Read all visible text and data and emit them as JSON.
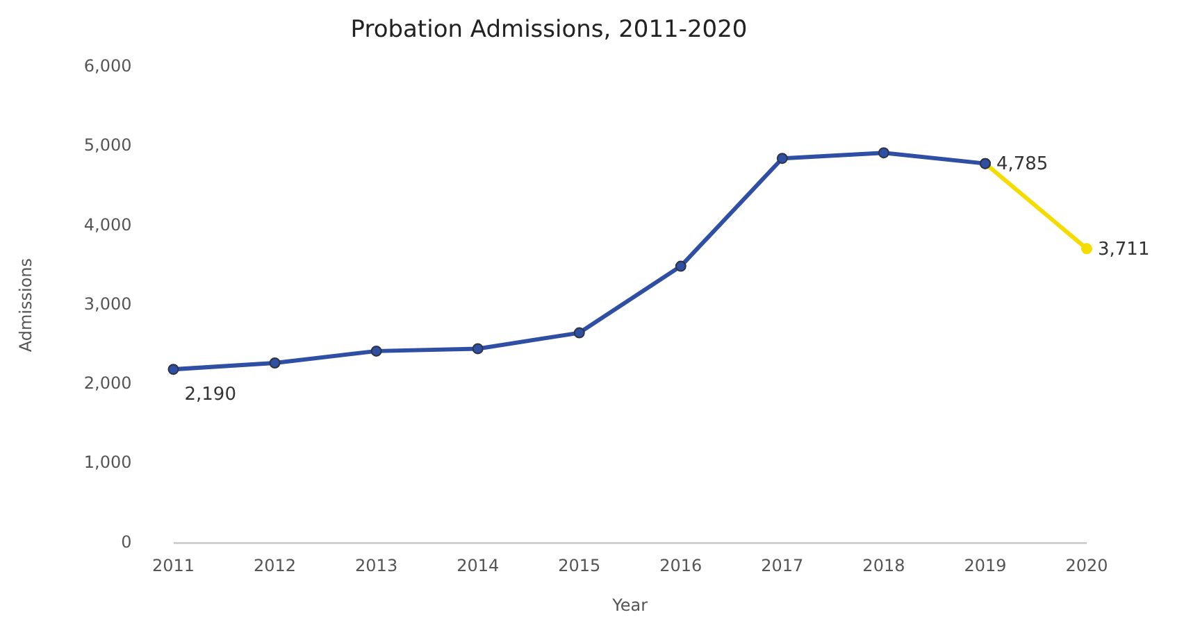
{
  "chart_data": {
    "type": "line",
    "title": "Probation Admissions, 2011-2020",
    "xlabel": "Year",
    "ylabel": "Admissions",
    "categories": [
      "2011",
      "2012",
      "2013",
      "2014",
      "2015",
      "2016",
      "2017",
      "2018",
      "2019",
      "2020"
    ],
    "series": [
      {
        "color": "#2e4fa3",
        "values": [
          2190,
          2270,
          2420,
          2450,
          2650,
          3490,
          4850,
          4920,
          4785,
          null
        ],
        "value_labels": [
          "2,190",
          null,
          null,
          null,
          null,
          null,
          null,
          null,
          null,
          null
        ]
      },
      {
        "color": "#f5dc00",
        "values": [
          null,
          null,
          null,
          null,
          null,
          null,
          null,
          null,
          4785,
          3711
        ],
        "value_labels": [
          null,
          null,
          null,
          null,
          null,
          null,
          null,
          null,
          "4,785",
          "3,711"
        ]
      }
    ],
    "ylim": [
      0,
      6000
    ],
    "yticks": [
      {
        "value": 0,
        "label": "0"
      },
      {
        "value": 1000,
        "label": "1,000"
      },
      {
        "value": 2000,
        "label": "2,000"
      },
      {
        "value": 3000,
        "label": "3,000"
      },
      {
        "value": 4000,
        "label": "4,000"
      },
      {
        "value": 5000,
        "label": "5,000"
      },
      {
        "value": 6000,
        "label": "6,000"
      }
    ],
    "marker": "circle",
    "line_style": "solid",
    "legend": false
  }
}
